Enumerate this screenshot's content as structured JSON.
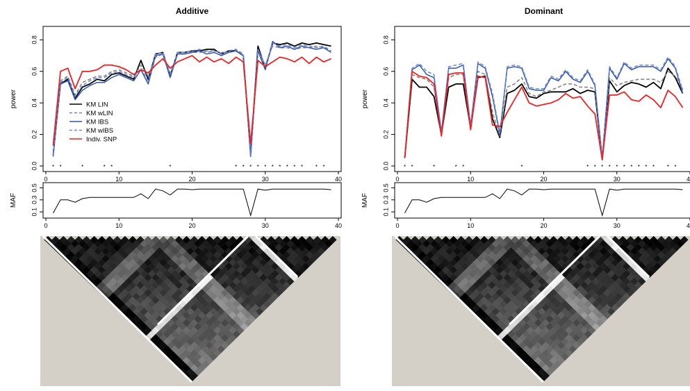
{
  "chart_data": [
    {
      "type": "line",
      "title": "Additive",
      "ylabel": "power",
      "xlabel": "",
      "xlim": [
        0,
        40
      ],
      "ylim": [
        0,
        0.85
      ],
      "xticks": [
        0,
        10,
        20,
        30,
        40
      ],
      "yticks": [
        0.0,
        0.2,
        0.4,
        0.6,
        0.8
      ],
      "legend": {
        "position": "middle-left",
        "entries": [
          "KM LIN",
          "KM wLIN",
          "KM IBS",
          "KM wIBS",
          "Indiv. SNP"
        ]
      },
      "x": [
        1,
        2,
        3,
        4,
        5,
        6,
        7,
        8,
        9,
        10,
        11,
        12,
        13,
        14,
        15,
        16,
        17,
        18,
        19,
        20,
        21,
        22,
        23,
        24,
        25,
        26,
        27,
        28,
        29,
        30,
        31,
        32,
        33,
        34,
        35,
        36,
        37,
        38,
        39
      ],
      "series": [
        {
          "name": "KM LIN",
          "color": "#000000",
          "dash": "solid",
          "values": [
            0.07,
            0.52,
            0.55,
            0.43,
            0.5,
            0.52,
            0.55,
            0.54,
            0.58,
            0.59,
            0.57,
            0.55,
            0.67,
            0.55,
            0.71,
            0.72,
            0.57,
            0.72,
            0.72,
            0.73,
            0.73,
            0.74,
            0.74,
            0.71,
            0.73,
            0.73,
            0.7,
            0.07,
            0.76,
            0.62,
            0.78,
            0.77,
            0.78,
            0.76,
            0.78,
            0.77,
            0.78,
            0.77,
            0.76
          ]
        },
        {
          "name": "KM wLIN",
          "color": "#808080",
          "dash": "dashed",
          "values": [
            0.08,
            0.54,
            0.57,
            0.45,
            0.53,
            0.55,
            0.57,
            0.57,
            0.6,
            0.61,
            0.59,
            0.57,
            0.64,
            0.57,
            0.69,
            0.71,
            0.59,
            0.71,
            0.71,
            0.72,
            0.72,
            0.73,
            0.73,
            0.72,
            0.72,
            0.73,
            0.7,
            0.08,
            0.74,
            0.64,
            0.76,
            0.75,
            0.75,
            0.74,
            0.75,
            0.75,
            0.76,
            0.75,
            0.73
          ]
        },
        {
          "name": "KM IBS",
          "color": "#3355aa",
          "dash": "solid",
          "values": [
            0.06,
            0.52,
            0.54,
            0.42,
            0.48,
            0.51,
            0.53,
            0.53,
            0.56,
            0.58,
            0.56,
            0.54,
            0.61,
            0.52,
            0.7,
            0.71,
            0.56,
            0.71,
            0.71,
            0.72,
            0.73,
            0.71,
            0.72,
            0.7,
            0.72,
            0.73,
            0.7,
            0.06,
            0.73,
            0.61,
            0.79,
            0.75,
            0.76,
            0.74,
            0.76,
            0.75,
            0.74,
            0.75,
            0.72
          ]
        },
        {
          "name": "KM wIBS",
          "color": "#6688dd",
          "dash": "dashed",
          "values": [
            0.07,
            0.53,
            0.56,
            0.44,
            0.51,
            0.54,
            0.56,
            0.56,
            0.59,
            0.6,
            0.58,
            0.56,
            0.62,
            0.54,
            0.71,
            0.72,
            0.58,
            0.72,
            0.72,
            0.73,
            0.74,
            0.72,
            0.73,
            0.71,
            0.73,
            0.74,
            0.71,
            0.07,
            0.74,
            0.63,
            0.78,
            0.76,
            0.77,
            0.75,
            0.77,
            0.76,
            0.75,
            0.76,
            0.73
          ]
        },
        {
          "name": "Indiv. SNP",
          "color": "#ee2222",
          "dash": "solid",
          "values": [
            0.13,
            0.6,
            0.62,
            0.49,
            0.6,
            0.6,
            0.61,
            0.64,
            0.64,
            0.63,
            0.61,
            0.58,
            0.61,
            0.59,
            0.64,
            0.68,
            0.62,
            0.66,
            0.68,
            0.7,
            0.66,
            0.69,
            0.66,
            0.68,
            0.65,
            0.69,
            0.66,
            0.14,
            0.67,
            0.63,
            0.66,
            0.69,
            0.68,
            0.66,
            0.69,
            0.65,
            0.69,
            0.66,
            0.68
          ]
        }
      ],
      "significance_markers": {
        "symbol": "*",
        "x": [
          1,
          2,
          5,
          8,
          9,
          17,
          26,
          27,
          28,
          29,
          30,
          31,
          32,
          33,
          34,
          35,
          37,
          38
        ]
      },
      "maf_panel": {
        "ylabel": "MAF",
        "yticks": [
          0.1,
          0.3,
          0.5
        ],
        "xticks": [
          0,
          10,
          20,
          30,
          40
        ],
        "values": [
          0.08,
          0.3,
          0.3,
          0.26,
          0.32,
          0.34,
          0.34,
          0.34,
          0.34,
          0.34,
          0.34,
          0.34,
          0.4,
          0.32,
          0.48,
          0.45,
          0.38,
          0.48,
          0.48,
          0.47,
          0.48,
          0.48,
          0.48,
          0.48,
          0.48,
          0.48,
          0.48,
          0.04,
          0.48,
          0.46,
          0.48,
          0.48,
          0.48,
          0.48,
          0.48,
          0.48,
          0.48,
          0.48,
          0.47
        ]
      },
      "ld_panel": {
        "type": "heatmap",
        "description_colors": [
          "#000000",
          "#ffffff"
        ],
        "background": "#d4d0c8"
      }
    },
    {
      "type": "line",
      "title": "Dominant",
      "ylabel": "power",
      "xlabel": "",
      "xlim": [
        0,
        40
      ],
      "ylim": [
        0,
        0.85
      ],
      "xticks": [
        0,
        10,
        20,
        30,
        40
      ],
      "yticks": [
        0.0,
        0.2,
        0.4,
        0.6,
        0.8
      ],
      "x": [
        1,
        2,
        3,
        4,
        5,
        6,
        7,
        8,
        9,
        10,
        11,
        12,
        13,
        14,
        15,
        16,
        17,
        18,
        19,
        20,
        21,
        22,
        23,
        24,
        25,
        26,
        27,
        28,
        29,
        30,
        31,
        32,
        33,
        34,
        35,
        36,
        37,
        38,
        39
      ],
      "series": [
        {
          "name": "KM LIN",
          "color": "#000000",
          "dash": "solid",
          "values": [
            0.05,
            0.55,
            0.5,
            0.5,
            0.44,
            0.2,
            0.5,
            0.52,
            0.52,
            0.24,
            0.56,
            0.57,
            0.3,
            0.18,
            0.46,
            0.48,
            0.52,
            0.44,
            0.43,
            0.46,
            0.47,
            0.47,
            0.47,
            0.49,
            0.46,
            0.48,
            0.47,
            0.04,
            0.54,
            0.47,
            0.51,
            0.53,
            0.52,
            0.5,
            0.53,
            0.49,
            0.62,
            0.56,
            0.46
          ]
        },
        {
          "name": "KM wLIN",
          "color": "#808080",
          "dash": "dashed",
          "values": [
            0.05,
            0.58,
            0.56,
            0.55,
            0.5,
            0.22,
            0.56,
            0.58,
            0.58,
            0.26,
            0.6,
            0.58,
            0.34,
            0.19,
            0.5,
            0.52,
            0.56,
            0.46,
            0.44,
            0.47,
            0.48,
            0.5,
            0.52,
            0.52,
            0.5,
            0.5,
            0.49,
            0.04,
            0.56,
            0.51,
            0.53,
            0.54,
            0.55,
            0.55,
            0.55,
            0.53,
            0.6,
            0.57,
            0.49
          ]
        },
        {
          "name": "KM IBS",
          "color": "#3355aa",
          "dash": "solid",
          "values": [
            0.05,
            0.61,
            0.64,
            0.58,
            0.56,
            0.21,
            0.62,
            0.62,
            0.64,
            0.25,
            0.65,
            0.62,
            0.44,
            0.2,
            0.62,
            0.63,
            0.62,
            0.49,
            0.48,
            0.48,
            0.56,
            0.54,
            0.6,
            0.55,
            0.53,
            0.6,
            0.51,
            0.05,
            0.62,
            0.55,
            0.65,
            0.61,
            0.63,
            0.63,
            0.63,
            0.6,
            0.68,
            0.62,
            0.46
          ]
        },
        {
          "name": "KM wIBS",
          "color": "#6688dd",
          "dash": "dashed",
          "values": [
            0.05,
            0.62,
            0.65,
            0.6,
            0.58,
            0.22,
            0.63,
            0.64,
            0.65,
            0.26,
            0.66,
            0.63,
            0.46,
            0.21,
            0.63,
            0.64,
            0.63,
            0.5,
            0.49,
            0.49,
            0.57,
            0.55,
            0.61,
            0.56,
            0.54,
            0.61,
            0.52,
            0.05,
            0.63,
            0.56,
            0.66,
            0.62,
            0.64,
            0.64,
            0.64,
            0.61,
            0.69,
            0.63,
            0.48
          ]
        },
        {
          "name": "Indiv. SNP",
          "color": "#ee2222",
          "dash": "solid",
          "values": [
            0.05,
            0.6,
            0.57,
            0.56,
            0.52,
            0.19,
            0.58,
            0.59,
            0.59,
            0.23,
            0.57,
            0.56,
            0.26,
            0.25,
            0.34,
            0.42,
            0.5,
            0.4,
            0.38,
            0.39,
            0.4,
            0.42,
            0.46,
            0.43,
            0.44,
            0.38,
            0.33,
            0.04,
            0.45,
            0.45,
            0.47,
            0.42,
            0.41,
            0.45,
            0.42,
            0.37,
            0.48,
            0.44,
            0.37
          ]
        }
      ],
      "significance_markers": {
        "symbol": "*",
        "x": [
          1,
          2,
          5,
          8,
          9,
          17,
          26,
          27,
          28,
          29,
          30,
          31,
          32,
          33,
          34,
          35,
          37,
          38
        ]
      },
      "maf_panel": {
        "ylabel": "MAF",
        "yticks": [
          0.1,
          0.3,
          0.5
        ],
        "xticks": [
          0,
          10,
          20,
          30,
          40
        ],
        "values": [
          0.08,
          0.3,
          0.3,
          0.26,
          0.32,
          0.34,
          0.34,
          0.34,
          0.34,
          0.34,
          0.34,
          0.34,
          0.4,
          0.32,
          0.48,
          0.45,
          0.38,
          0.48,
          0.48,
          0.47,
          0.48,
          0.48,
          0.48,
          0.48,
          0.48,
          0.48,
          0.48,
          0.04,
          0.48,
          0.46,
          0.48,
          0.48,
          0.48,
          0.48,
          0.48,
          0.48,
          0.48,
          0.48,
          0.47
        ]
      },
      "ld_panel": {
        "type": "heatmap",
        "description_colors": [
          "#000000",
          "#ffffff"
        ],
        "background": "#d4d0c8"
      }
    }
  ]
}
